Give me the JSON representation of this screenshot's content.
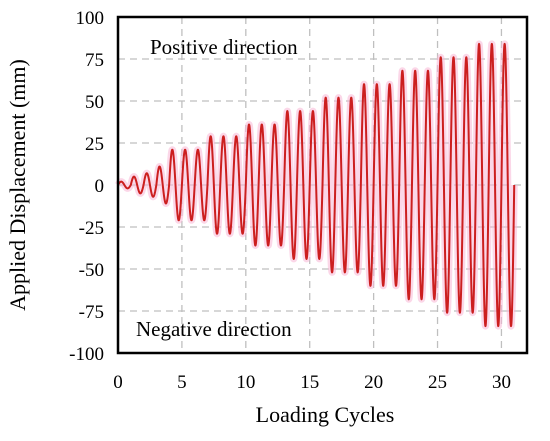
{
  "chart_data": {
    "type": "line",
    "xlabel": "Loading Cycles",
    "ylabel": "Applied Displacement (mm)",
    "xlim": [
      0,
      32
    ],
    "ylim": [
      -100,
      100
    ],
    "x_ticks": [
      0,
      5,
      10,
      15,
      20,
      25,
      30
    ],
    "y_ticks": [
      100,
      75,
      50,
      25,
      0,
      -25,
      -50,
      -75,
      -100
    ],
    "grid": true,
    "annotations": [
      "Positive direction",
      "Negative direction"
    ],
    "series": [
      {
        "color": "#cc1f1f",
        "amplitude_blocks": [
          {
            "cycles": [
              0,
              1
            ],
            "amplitude": 2
          },
          {
            "cycles": [
              1,
              2
            ],
            "amplitude": 5
          },
          {
            "cycles": [
              2,
              3
            ],
            "amplitude": 7
          },
          {
            "cycles": [
              3,
              4
            ],
            "amplitude": 11
          },
          {
            "cycles": [
              4,
              7
            ],
            "amplitude": 21
          },
          {
            "cycles": [
              7,
              10
            ],
            "amplitude": 29
          },
          {
            "cycles": [
              10,
              13
            ],
            "amplitude": 36
          },
          {
            "cycles": [
              13,
              16
            ],
            "amplitude": 44
          },
          {
            "cycles": [
              16,
              19
            ],
            "amplitude": 52
          },
          {
            "cycles": [
              19,
              22
            ],
            "amplitude": 60
          },
          {
            "cycles": [
              22,
              25
            ],
            "amplitude": 68
          },
          {
            "cycles": [
              25,
              28
            ],
            "amplitude": 76
          },
          {
            "cycles": [
              28,
              31
            ],
            "amplitude": 84
          }
        ]
      }
    ]
  }
}
